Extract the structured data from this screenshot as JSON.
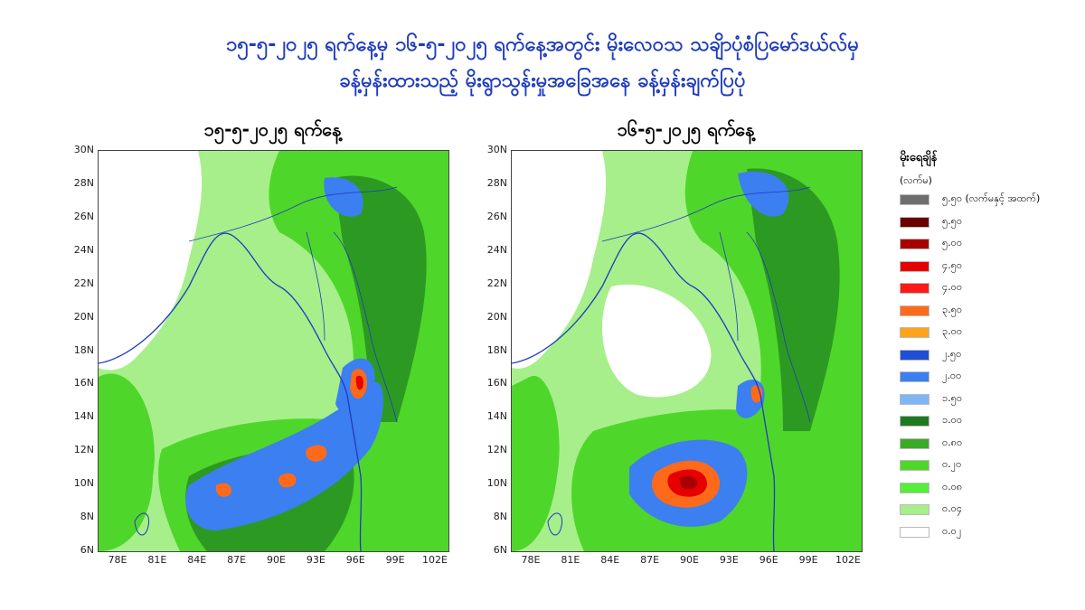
{
  "title_line1": "၁၅-၅-၂၀၂၅ ရက်နေ့မှ ၁၆-၅-၂၀၂၅ ရက်နေ့အတွင်း မိုးလေဝသ သချိာပုံစံပြမော်ဒယ်လ်မှ",
  "title_line2": "ခန့်မှန်းထားသည့် မိုးရွာသွန်းမှုအခြေအနေ ခန့်မှန်းချက်ပြပုံ",
  "maps": [
    {
      "label": "၁၅-၅-၂၀၂၅ ရက်နေ့"
    },
    {
      "label": "၁၆-၅-၂၀၂၅ ရက်နေ့"
    }
  ],
  "y_ticks": [
    "30N",
    "28N",
    "26N",
    "24N",
    "22N",
    "20N",
    "18N",
    "16N",
    "14N",
    "12N",
    "10N",
    "8N",
    "6N"
  ],
  "x_ticks": [
    "78E",
    "81E",
    "84E",
    "87E",
    "90E",
    "93E",
    "96E",
    "99E",
    "102E"
  ],
  "legend": {
    "title": "မိုးရေချိန်",
    "unit": "(လက်မ)",
    "items": [
      {
        "label": "၅.၅၀ (လက်မနှင့် အထက်)",
        "color": "#6e6e6e"
      },
      {
        "label": "၅.၅၀",
        "color": "#6b0000"
      },
      {
        "label": "၅.၀၀",
        "color": "#a80000"
      },
      {
        "label": "၄.၅၀",
        "color": "#e60000"
      },
      {
        "label": "၄.၀၀",
        "color": "#ff1a1a"
      },
      {
        "label": "၃.၅၀",
        "color": "#ff6a1a"
      },
      {
        "label": "၃.၀၀",
        "color": "#ffa319"
      },
      {
        "label": "၂.၅၀",
        "color": "#1f4fd6"
      },
      {
        "label": "၂.၀၀",
        "color": "#3b7ff0"
      },
      {
        "label": "၁.၅၀",
        "color": "#7fb6f5"
      },
      {
        "label": "၁.၀၀",
        "color": "#1f7a1f"
      },
      {
        "label": "၀.၈၀",
        "color": "#3caa28"
      },
      {
        "label": "၀.၂၀",
        "color": "#4fd62a"
      },
      {
        "label": "၀.၀၈",
        "color": "#55ee3a"
      },
      {
        "label": "၀.၀၄",
        "color": "#a6ef8a"
      },
      {
        "label": "၀.၀၂",
        "color": "#ffffff"
      }
    ]
  }
}
